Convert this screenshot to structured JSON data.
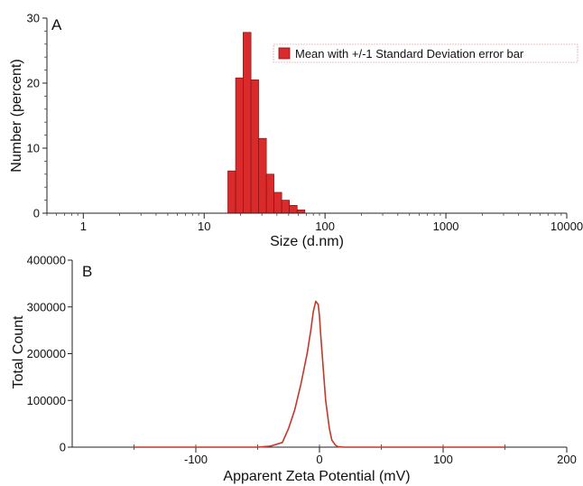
{
  "chart_data": [
    {
      "type": "bar",
      "panel_label": "A",
      "xlabel": "Size (d.nm)",
      "ylabel": "Number (percent)",
      "xscale": "log",
      "xlim": [
        0.5,
        10000
      ],
      "ylim": [
        0,
        30
      ],
      "x_ticks": [
        "1",
        "10",
        "100",
        "1000",
        "10000"
      ],
      "y_ticks": [
        "0",
        "10",
        "20",
        "30"
      ],
      "legend": {
        "label": "Mean with +/-1 Standard Deviation error bar",
        "placement": "top-right"
      },
      "color": "#d92b2b",
      "bins": [
        {
          "from": 15.7,
          "to": 18.2,
          "value": 6.5
        },
        {
          "from": 18.2,
          "to": 21.0,
          "value": 20.8
        },
        {
          "from": 21.0,
          "to": 24.4,
          "value": 27.8
        },
        {
          "from": 24.4,
          "to": 28.2,
          "value": 20.5
        },
        {
          "from": 28.2,
          "to": 32.7,
          "value": 11.5
        },
        {
          "from": 32.7,
          "to": 37.8,
          "value": 6.0
        },
        {
          "from": 37.8,
          "to": 43.8,
          "value": 3.2
        },
        {
          "from": 43.8,
          "to": 50.7,
          "value": 2.0
        },
        {
          "from": 50.7,
          "to": 58.8,
          "value": 1.2
        },
        {
          "from": 58.8,
          "to": 68.1,
          "value": 0.5
        }
      ]
    },
    {
      "type": "line",
      "panel_label": "B",
      "xlabel": "Apparent Zeta Potential (mV)",
      "ylabel": "Total Count",
      "xlim": [
        -200,
        200
      ],
      "ylim": [
        0,
        400000
      ],
      "x_ticks": [
        "-100",
        "0",
        "100",
        "200"
      ],
      "y_ticks": [
        "0",
        "100000",
        "200000",
        "300000",
        "400000"
      ],
      "color": "#c0392b",
      "x": [
        -150,
        -100,
        -50,
        -40,
        -30,
        -25,
        -20,
        -15,
        -10,
        -7,
        -5,
        -3,
        -1,
        0,
        1,
        3,
        5,
        8,
        10,
        13,
        15,
        20,
        50,
        100,
        150
      ],
      "y": [
        0,
        0,
        0,
        2000,
        10000,
        40000,
        80000,
        135000,
        200000,
        250000,
        290000,
        312000,
        305000,
        280000,
        240000,
        170000,
        100000,
        40000,
        15000,
        4000,
        1000,
        0,
        0,
        0,
        0
      ]
    }
  ]
}
